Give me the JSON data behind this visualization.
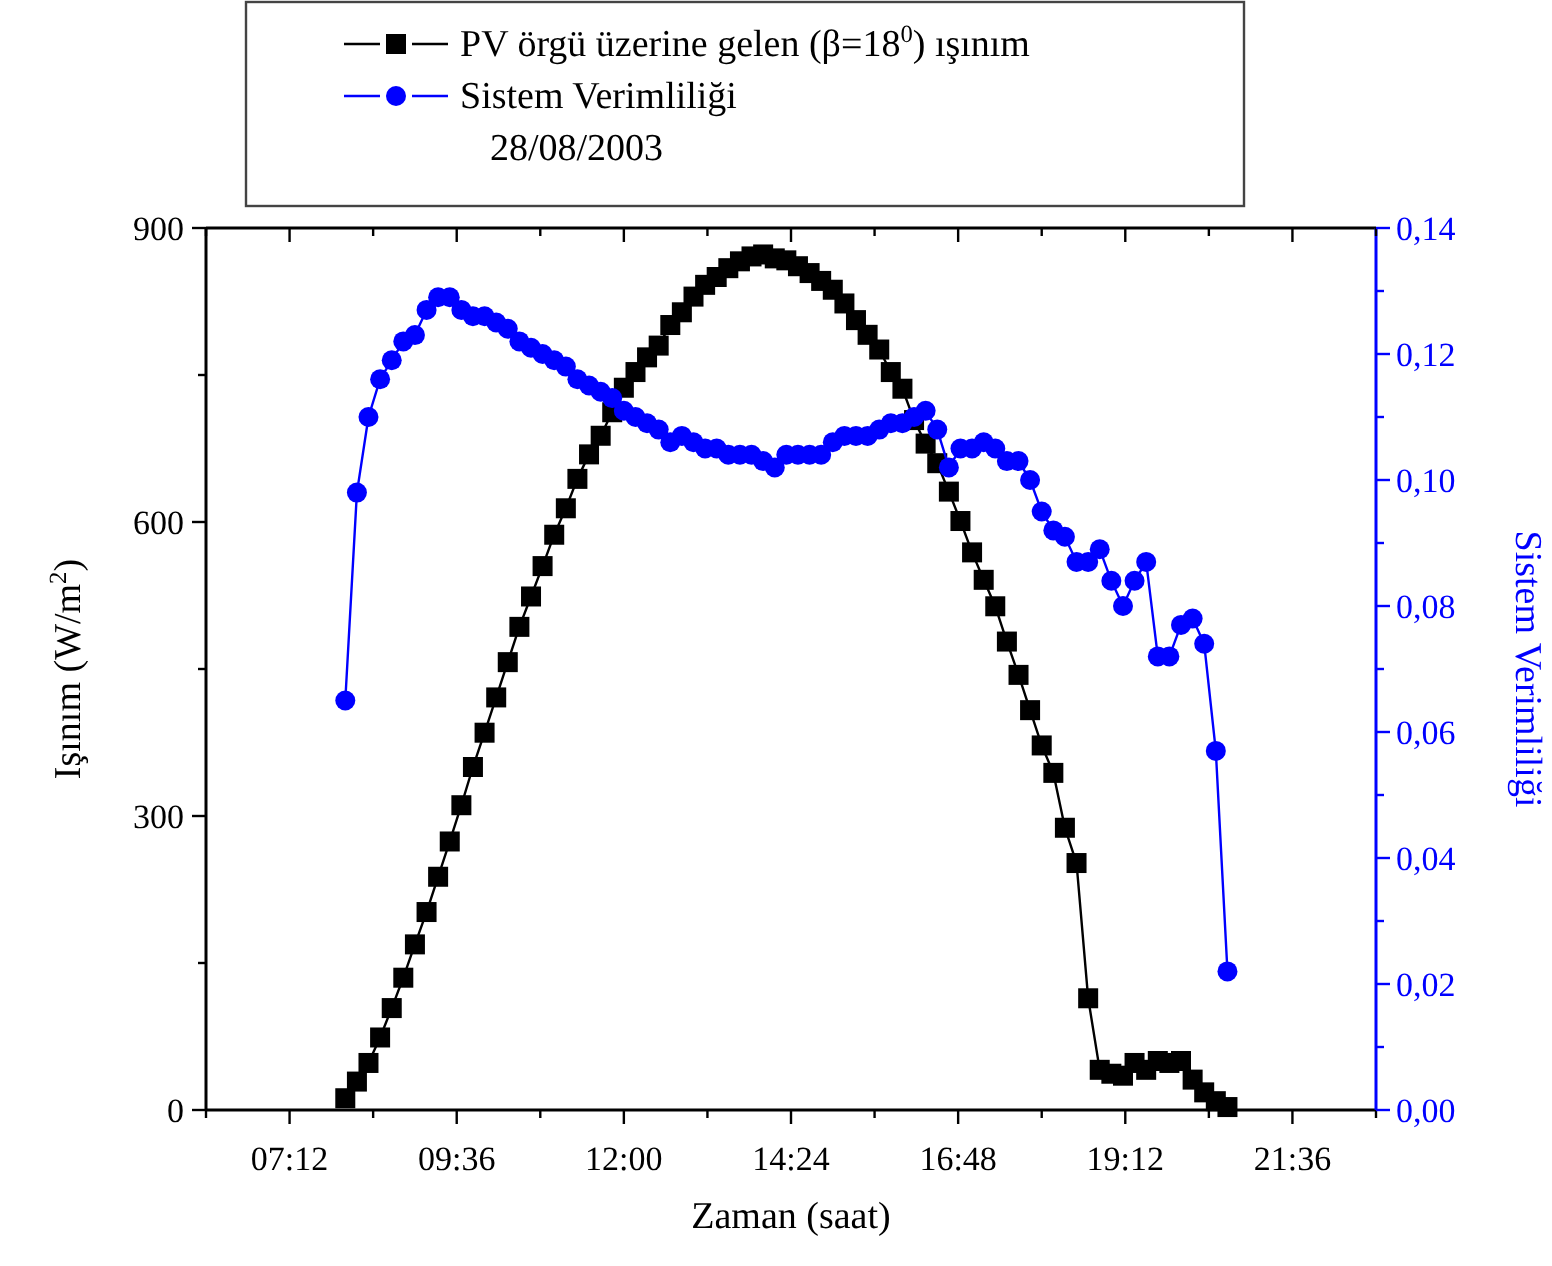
{
  "chart_data": {
    "type": "line",
    "subtitle": "28/08/2003",
    "xlabel": "Zaman (saat)",
    "ylabel": "Işınım (W/m$^{2}$)",
    "y2label": "Sistem Verimliliği",
    "x": [
      8,
      8.167,
      8.333,
      8.5,
      8.667,
      8.833,
      9,
      9.167,
      9.333,
      9.5,
      9.667,
      9.833,
      10,
      10.167,
      10.333,
      10.5,
      10.667,
      10.833,
      11,
      11.167,
      11.333,
      11.5,
      11.667,
      11.833,
      12,
      12.167,
      12.333,
      12.5,
      12.667,
      12.833,
      13,
      13.167,
      13.333,
      13.5,
      13.667,
      13.833,
      14,
      14.167,
      14.333,
      14.5,
      14.667,
      14.833,
      15,
      15.167,
      15.333,
      15.5,
      15.667,
      15.833,
      16,
      16.167,
      16.333,
      16.5,
      16.667,
      16.833,
      17,
      17.167,
      17.333,
      17.5,
      17.667,
      17.833,
      18,
      18.167,
      18.333,
      18.5,
      18.667,
      18.833,
      19,
      19.167,
      19.333,
      19.5,
      19.667,
      19.833,
      20,
      20.167,
      20.333,
      20.5,
      20.667
    ],
    "series": [
      {
        "name": "PV örgü üzerine gelen (β=18$^{0}$) ışınım",
        "color": "#000000",
        "marker": "square",
        "values": [
          12,
          29,
          48,
          74,
          104,
          135,
          169,
          202,
          238,
          274,
          311,
          350,
          385,
          421,
          457,
          493,
          524,
          555,
          587,
          614,
          644,
          669,
          688,
          712,
          737,
          753,
          768,
          780,
          801,
          814,
          830,
          842,
          850,
          859,
          866,
          871,
          873,
          869,
          867,
          861,
          854,
          846,
          837,
          823,
          806,
          791,
          776,
          753,
          736,
          704,
          680,
          660,
          631,
          601,
          569,
          541,
          514,
          478,
          444,
          408,
          372,
          344,
          288,
          252,
          114,
          41,
          37,
          35,
          48,
          41,
          50,
          48,
          50,
          31,
          18,
          9,
          3
        ]
      },
      {
        "name": "Sistem Verimliliği",
        "color": "#0000ff",
        "marker": "circle",
        "axis": "y2",
        "values": [
          0.065,
          0.098,
          0.11,
          0.116,
          0.119,
          0.122,
          0.123,
          0.127,
          0.129,
          0.129,
          0.127,
          0.126,
          0.126,
          0.125,
          0.124,
          0.122,
          0.121,
          0.12,
          0.119,
          0.118,
          0.116,
          0.115,
          0.114,
          0.113,
          0.111,
          0.11,
          0.109,
          0.108,
          0.106,
          0.107,
          0.106,
          0.105,
          0.105,
          0.104,
          0.104,
          0.104,
          0.103,
          0.102,
          0.104,
          0.104,
          0.104,
          0.104,
          0.106,
          0.107,
          0.107,
          0.107,
          0.108,
          0.109,
          0.109,
          0.11,
          0.111,
          0.108,
          0.102,
          0.105,
          0.105,
          0.106,
          0.105,
          0.103,
          0.103,
          0.1,
          0.095,
          0.092,
          0.091,
          0.087,
          0.087,
          0.089,
          0.084,
          0.08,
          0.084,
          0.087,
          0.072,
          0.072,
          0.077,
          0.078,
          0.074,
          0.057,
          0.022
        ]
      }
    ],
    "xlim": [
      6,
      22.8
    ],
    "xticks": [
      {
        "value": 6,
        "label": null
      },
      {
        "value": 7.2,
        "label": "07:12"
      },
      {
        "value": 8.4,
        "label": null
      },
      {
        "value": 9.6,
        "label": "09:36"
      },
      {
        "value": 10.8,
        "label": null
      },
      {
        "value": 12,
        "label": "12:00"
      },
      {
        "value": 13.2,
        "label": null
      },
      {
        "value": 14.4,
        "label": "14:24"
      },
      {
        "value": 15.6,
        "label": null
      },
      {
        "value": 16.8,
        "label": "16:48"
      },
      {
        "value": 18,
        "label": null
      },
      {
        "value": 19.2,
        "label": "19:12"
      },
      {
        "value": 20.4,
        "label": null
      },
      {
        "value": 21.6,
        "label": "21:36"
      },
      {
        "value": 22.8,
        "label": null
      }
    ],
    "ylim": [
      0,
      900
    ],
    "yticks": [
      0,
      {
        "value": 150,
        "label": null
      },
      300,
      {
        "value": 450,
        "label": null
      },
      600,
      {
        "value": 750,
        "label": null
      },
      900
    ],
    "y2lim": [
      0,
      0.14
    ],
    "y2ticks": [
      {
        "value": 0,
        "label": "0,00"
      },
      {
        "value": 0.01,
        "label": null
      },
      {
        "value": 0.02,
        "label": "0,02"
      },
      {
        "value": 0.03,
        "label": null
      },
      {
        "value": 0.04,
        "label": "0,04"
      },
      {
        "value": 0.05,
        "label": null
      },
      {
        "value": 0.06,
        "label": "0,06"
      },
      {
        "value": 0.07,
        "label": null
      },
      {
        "value": 0.08,
        "label": "0,08"
      },
      {
        "value": 0.09,
        "label": null
      },
      {
        "value": 0.1,
        "label": "0,10"
      },
      {
        "value": 0.11,
        "label": null
      },
      {
        "value": 0.12,
        "label": "0,12"
      },
      {
        "value": 0.13,
        "label": null
      },
      {
        "value": 0.14,
        "label": "0,14"
      }
    ],
    "legend": "top",
    "line_style": "solid"
  }
}
